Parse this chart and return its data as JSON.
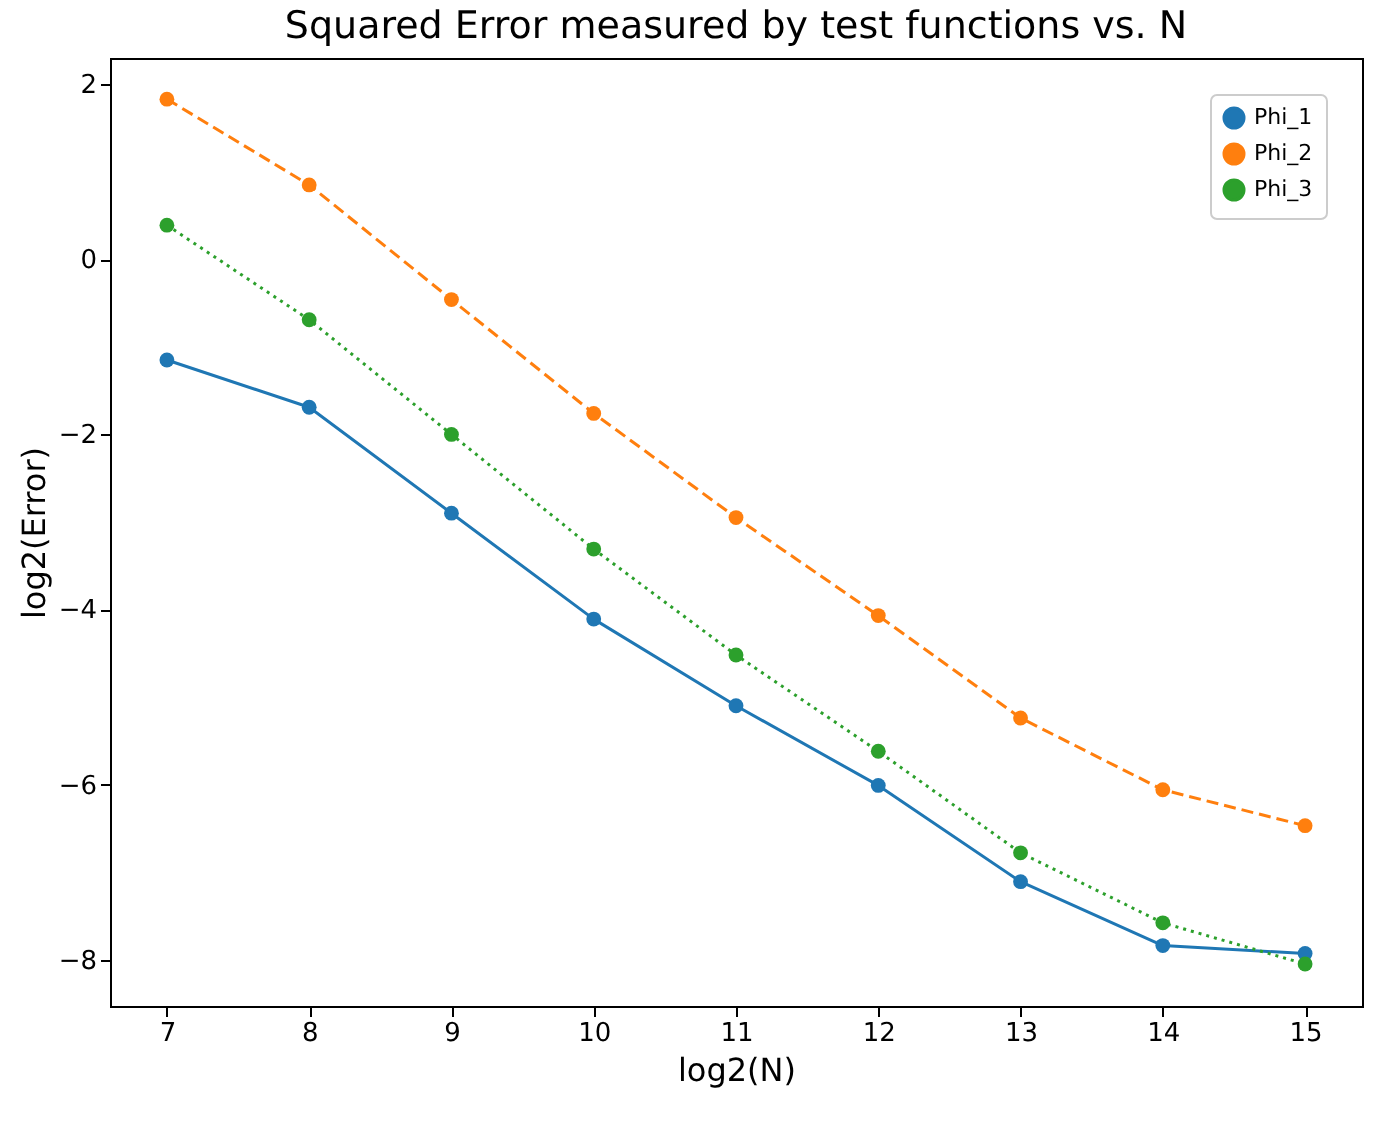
{
  "chart_data": {
    "type": "line",
    "title": "Squared Error measured by test functions vs. N",
    "xlabel": "log2(N)",
    "ylabel": "log2(Error)",
    "x": [
      7,
      8,
      9,
      10,
      11,
      12,
      13,
      14,
      15
    ],
    "series": [
      {
        "name": "Phi_1",
        "color": "#1f77b4",
        "line_style": "solid",
        "values": [
          -1.15,
          -1.69,
          -2.9,
          -4.11,
          -5.1,
          -6.01,
          -7.11,
          -7.84,
          -7.93
        ]
      },
      {
        "name": "Phi_2",
        "color": "#ff7f0e",
        "line_style": "dashed",
        "values": [
          1.83,
          0.85,
          -0.46,
          -1.76,
          -2.95,
          -4.07,
          -5.24,
          -6.06,
          -6.47
        ]
      },
      {
        "name": "Phi_3",
        "color": "#2ca02c",
        "line_style": "dotted",
        "values": [
          0.39,
          -0.69,
          -2.0,
          -3.31,
          -4.52,
          -5.62,
          -6.78,
          -7.58,
          -8.05
        ]
      }
    ],
    "xlim": [
      6.6,
      15.4
    ],
    "xticks": [
      7,
      8,
      9,
      10,
      11,
      12,
      13,
      14,
      15
    ],
    "ylim": [
      -8.53,
      2.3
    ],
    "yticks": [
      -8,
      -6,
      -4,
      -2,
      0,
      2
    ],
    "marker": "circle",
    "legend": "top right",
    "grid": false
  }
}
